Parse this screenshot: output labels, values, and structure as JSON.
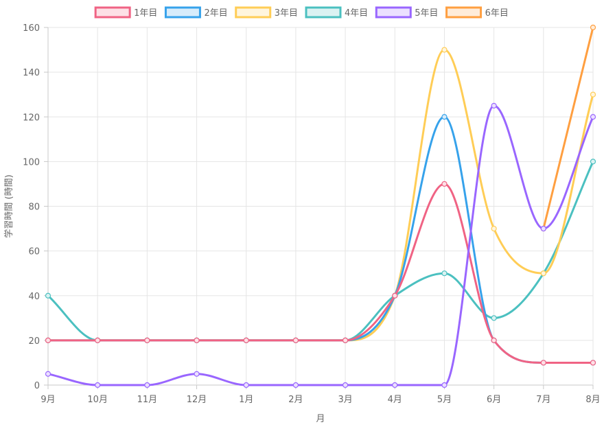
{
  "chart_data": {
    "type": "line",
    "title": "",
    "xlabel": "月",
    "ylabel": "学習時間 (時間)",
    "categories": [
      "9月",
      "10月",
      "11月",
      "12月",
      "1月",
      "2月",
      "3月",
      "4月",
      "5月",
      "6月",
      "7月",
      "8月"
    ],
    "ylim": [
      0,
      160
    ],
    "yticks": [
      0,
      20,
      40,
      60,
      80,
      100,
      120,
      140,
      160
    ],
    "grid": true,
    "legend_position": "top-center",
    "series": [
      {
        "name": "1年目",
        "color": "#f06384",
        "fill": "#fde0e6",
        "values": [
          20,
          20,
          20,
          20,
          20,
          20,
          20,
          40,
          90,
          20,
          10,
          10
        ]
      },
      {
        "name": "2年目",
        "color": "#36a2eb",
        "fill": "#d7ecfb",
        "values": [
          20,
          20,
          20,
          20,
          20,
          20,
          20,
          40,
          120,
          20,
          10,
          10
        ]
      },
      {
        "name": "3年目",
        "color": "#ffcd56",
        "fill": "#fff5dd",
        "values": [
          20,
          20,
          20,
          20,
          20,
          20,
          20,
          40,
          150,
          70,
          50,
          130
        ]
      },
      {
        "name": "4年目",
        "color": "#4bc0c0",
        "fill": "#dbf2f2",
        "values": [
          40,
          20,
          20,
          20,
          20,
          20,
          20,
          40,
          50,
          30,
          50,
          100
        ]
      },
      {
        "name": "5年目",
        "color": "#9966ff",
        "fill": "#ebe0ff",
        "values": [
          5,
          0,
          0,
          5,
          0,
          0,
          0,
          0,
          0,
          125,
          70,
          120
        ]
      },
      {
        "name": "6年目",
        "color": "#ff9f40",
        "fill": "#ffecd9",
        "values": [
          null,
          null,
          null,
          null,
          null,
          null,
          null,
          null,
          null,
          null,
          70,
          160
        ]
      }
    ],
    "draw_order": [
      5,
      3,
      2,
      1,
      0,
      4
    ]
  }
}
